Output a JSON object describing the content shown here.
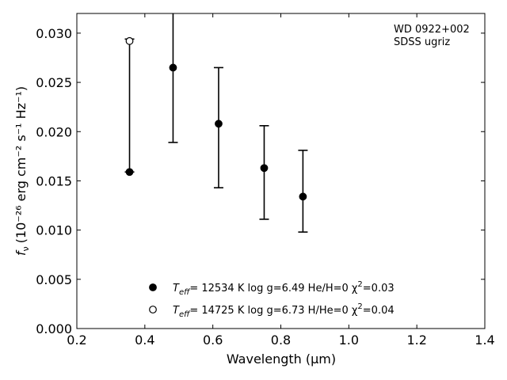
{
  "chart_data": {
    "type": "scatter",
    "xlabel": "Wavelength (μm)",
    "ylabel_main": "f",
    "ylabel_sub": "ν",
    "ylabel_units": "(10⁻²⁶ erg cm⁻² s⁻¹ Hz⁻¹)",
    "xlim": [
      0.2,
      1.4
    ],
    "ylim": [
      0.0,
      0.032
    ],
    "xticks": [
      "0.2",
      "0.4",
      "0.6",
      "0.8",
      "1.0",
      "1.2",
      "1.4"
    ],
    "yticks": [
      "0.000",
      "0.005",
      "0.010",
      "0.015",
      "0.020",
      "0.025",
      "0.030"
    ],
    "annotations": [
      "WD 0922+002",
      "SDSS ugriz"
    ],
    "observed": {
      "x": [
        0.355,
        0.483,
        0.617,
        0.751,
        0.865
      ],
      "y": [
        0.0159,
        0.0265,
        0.0208,
        0.0163,
        0.0134
      ],
      "yerr_low": [
        0.0159,
        0.0189,
        0.0143,
        0.0111,
        0.0098
      ],
      "yerr_high": [
        0.0294,
        0.0325,
        0.0265,
        0.0206,
        0.0181
      ]
    },
    "series": [
      {
        "name": "T_eff= 12534 K  log g=6.49  He/H=0  χ²=0.03",
        "marker": "filled-circle",
        "x": [
          0.355,
          0.483,
          0.617,
          0.751,
          0.865
        ],
        "y": [
          0.0159,
          0.0265,
          0.0208,
          0.0163,
          0.0134
        ]
      },
      {
        "name": "T_eff= 14725 K  log g=6.73  H/He=0  χ²=0.04",
        "marker": "open-circle",
        "x": [
          0.355
        ],
        "y": [
          0.0292
        ]
      }
    ],
    "legend": [
      {
        "pre": "T",
        "sub": "eff",
        "post": "= 12534 K  log g=6.49  He/H=0  χ",
        "sup": "2",
        "tail": "=0.03",
        "marker": "filled"
      },
      {
        "pre": "T",
        "sub": "eff",
        "post": "= 14725 K  log g=6.73  H/He=0  χ",
        "sup": "2",
        "tail": "=0.04",
        "marker": "open"
      }
    ],
    "legend_position": "bottom-center",
    "grid": false,
    "colors": {
      "marker": "#000000",
      "background": "#ffffff"
    }
  }
}
